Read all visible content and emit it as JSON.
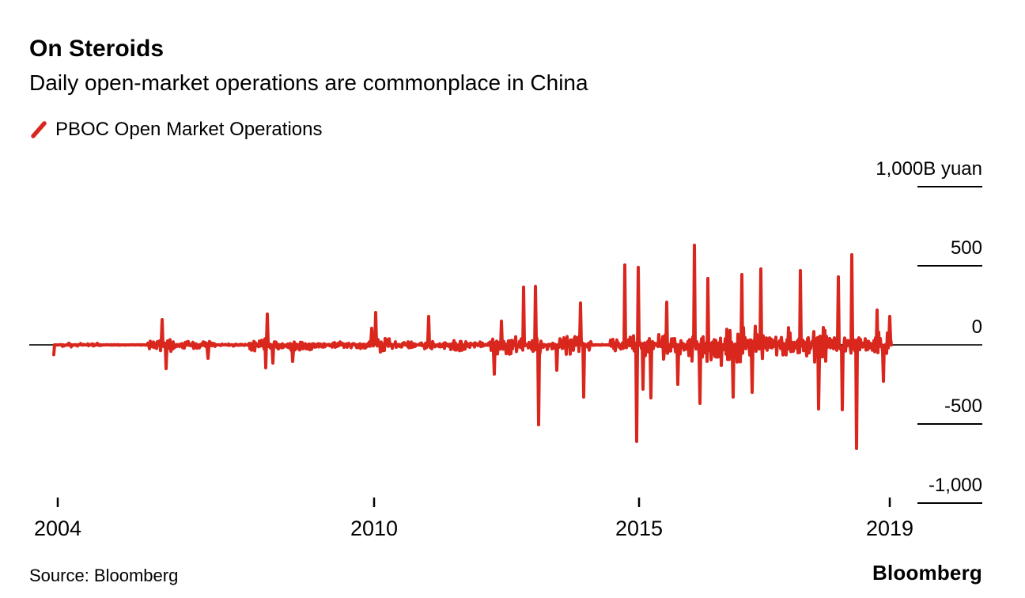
{
  "header": {
    "title": "On Steroids",
    "subtitle": "Daily open-market operations are commonplace in China"
  },
  "legend": {
    "series_label": "PBOC Open Market Operations"
  },
  "footer": {
    "source": "Source: Bloomberg",
    "logo": "Bloomberg"
  },
  "colors": {
    "series_red": "#d9271e",
    "axis_black": "#1a1a1a",
    "text_black": "#000000"
  },
  "chart_data": {
    "type": "line",
    "title": "On Steroids",
    "subtitle": "Daily open-market operations are commonplace in China",
    "unit": "B yuan",
    "series": [
      {
        "name": "PBOC Open Market Operations",
        "color": "#d9271e"
      }
    ],
    "x_axis": {
      "ticks": [
        2004,
        2010,
        2015,
        2019
      ],
      "tick_labels": [
        "2004",
        "2010",
        "2015",
        "2019"
      ],
      "range": [
        2003.93,
        2019.03
      ]
    },
    "y_axis": {
      "ticks": [
        1000,
        500,
        0,
        -500,
        -1000
      ],
      "tick_labels": [
        "1,000B yuan",
        "500",
        "0",
        "-500",
        "-1,000"
      ],
      "range": [
        -1000,
        1000
      ],
      "zero_baseline": true,
      "position": "right"
    },
    "legend_position": "top-left",
    "grid": false,
    "volatility_envelope": [
      {
        "from": 2003.93,
        "to": 2004.85,
        "up": 14,
        "dn": 16
      },
      {
        "from": 2004.85,
        "to": 2005.7,
        "up": 4,
        "dn": 5
      },
      {
        "from": 2005.7,
        "to": 2006.2,
        "up": 50,
        "dn": 55
      },
      {
        "from": 2006.2,
        "to": 2006.6,
        "up": 22,
        "dn": 30
      },
      {
        "from": 2006.6,
        "to": 2007.0,
        "up": 25,
        "dn": 40
      },
      {
        "from": 2007.0,
        "to": 2007.62,
        "up": 8,
        "dn": 10
      },
      {
        "from": 2007.62,
        "to": 2008.2,
        "up": 45,
        "dn": 55
      },
      {
        "from": 2008.2,
        "to": 2009.3,
        "up": 25,
        "dn": 40
      },
      {
        "from": 2009.3,
        "to": 2009.9,
        "up": 30,
        "dn": 45
      },
      {
        "from": 2009.9,
        "to": 2010.3,
        "up": 45,
        "dn": 55
      },
      {
        "from": 2010.3,
        "to": 2010.9,
        "up": 35,
        "dn": 45
      },
      {
        "from": 2010.9,
        "to": 2011.3,
        "up": 45,
        "dn": 50
      },
      {
        "from": 2011.3,
        "to": 2011.95,
        "up": 40,
        "dn": 50
      },
      {
        "from": 2011.95,
        "to": 2012.55,
        "up": 55,
        "dn": 70
      },
      {
        "from": 2012.55,
        "to": 2013.25,
        "up": 70,
        "dn": 80
      },
      {
        "from": 2013.25,
        "to": 2013.8,
        "up": 55,
        "dn": 65
      },
      {
        "from": 2013.8,
        "to": 2014.1,
        "up": 60,
        "dn": 75
      },
      {
        "from": 2014.1,
        "to": 2014.45,
        "up": 6,
        "dn": 7
      },
      {
        "from": 2014.45,
        "to": 2015.15,
        "up": 65,
        "dn": 85
      },
      {
        "from": 2015.15,
        "to": 2015.8,
        "up": 85,
        "dn": 105
      },
      {
        "from": 2015.8,
        "to": 2016.2,
        "up": 105,
        "dn": 125
      },
      {
        "from": 2016.2,
        "to": 2017.1,
        "up": 135,
        "dn": 145
      },
      {
        "from": 2017.1,
        "to": 2017.8,
        "up": 145,
        "dn": 165
      },
      {
        "from": 2017.8,
        "to": 2018.3,
        "up": 135,
        "dn": 165
      },
      {
        "from": 2018.3,
        "to": 2018.6,
        "up": 115,
        "dn": 145
      },
      {
        "from": 2018.6,
        "to": 2019.05,
        "up": 95,
        "dn": 115
      }
    ],
    "notable_operations": [
      {
        "year": 2005.98,
        "value": 160
      },
      {
        "year": 2006.06,
        "value": -150
      },
      {
        "year": 2006.85,
        "value": -85
      },
      {
        "year": 2007.94,
        "value": -145
      },
      {
        "year": 2007.97,
        "value": 195
      },
      {
        "year": 2008.08,
        "value": -115
      },
      {
        "year": 2008.45,
        "value": -105
      },
      {
        "year": 2009.95,
        "value": 105
      },
      {
        "year": 2010.03,
        "value": 205
      },
      {
        "year": 2011.03,
        "value": 180
      },
      {
        "year": 2012.27,
        "value": -185
      },
      {
        "year": 2012.4,
        "value": 150
      },
      {
        "year": 2012.82,
        "value": 365
      },
      {
        "year": 2013.05,
        "value": 370
      },
      {
        "year": 2013.1,
        "value": -505
      },
      {
        "year": 2013.45,
        "value": -160
      },
      {
        "year": 2013.9,
        "value": 265
      },
      {
        "year": 2013.95,
        "value": -330
      },
      {
        "year": 2014.73,
        "value": 505
      },
      {
        "year": 2014.96,
        "value": -610
      },
      {
        "year": 2014.99,
        "value": 490
      },
      {
        "year": 2015.06,
        "value": -280
      },
      {
        "year": 2015.19,
        "value": -335
      },
      {
        "year": 2015.44,
        "value": 270
      },
      {
        "year": 2015.62,
        "value": -250
      },
      {
        "year": 2015.88,
        "value": 630
      },
      {
        "year": 2015.97,
        "value": -370
      },
      {
        "year": 2016.1,
        "value": 420
      },
      {
        "year": 2016.5,
        "value": -330
      },
      {
        "year": 2016.64,
        "value": 445
      },
      {
        "year": 2016.8,
        "value": -300
      },
      {
        "year": 2016.94,
        "value": 480
      },
      {
        "year": 2017.57,
        "value": 470
      },
      {
        "year": 2017.86,
        "value": -405
      },
      {
        "year": 2018.18,
        "value": 430
      },
      {
        "year": 2018.24,
        "value": -410
      },
      {
        "year": 2018.4,
        "value": 570
      },
      {
        "year": 2018.47,
        "value": -655
      },
      {
        "year": 2018.8,
        "value": 220
      },
      {
        "year": 2018.9,
        "value": -230
      },
      {
        "year": 2019.0,
        "value": 180
      }
    ]
  }
}
